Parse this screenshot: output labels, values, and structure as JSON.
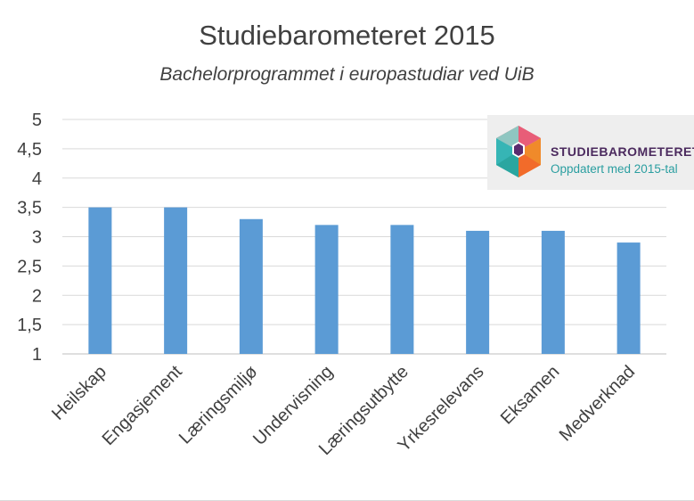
{
  "chart_data": {
    "type": "bar",
    "title": "Studiebarometeret 2015",
    "subtitle": "Bachelorprogrammet i europastudiar ved UiB",
    "categories": [
      "Heilskap",
      "Engasjement",
      "Læringsmiljø",
      "Undervisning",
      "Læringsutbytte",
      "Yrkesrelevans",
      "Eksamen",
      "Medverknad"
    ],
    "values": [
      3.5,
      3.5,
      3.3,
      3.2,
      3.2,
      3.1,
      3.1,
      2.9
    ],
    "ylim": [
      1,
      5
    ],
    "yticks": [
      "1",
      "1,5",
      "2",
      "2,5",
      "3",
      "3,5",
      "4",
      "4,5",
      "5"
    ],
    "ytick_values": [
      1,
      1.5,
      2,
      2.5,
      3,
      3.5,
      4,
      4.5,
      5
    ],
    "grid": true,
    "xlabel": "",
    "ylabel": "",
    "bar_color": "#5b9bd5",
    "grid_color": "#d9d9d9"
  },
  "badge": {
    "name": "STUDIEBAROMETERET",
    "tagline": "Oppdatert med 2015-tal",
    "logo_icon": "hexagon-cube-icon"
  }
}
